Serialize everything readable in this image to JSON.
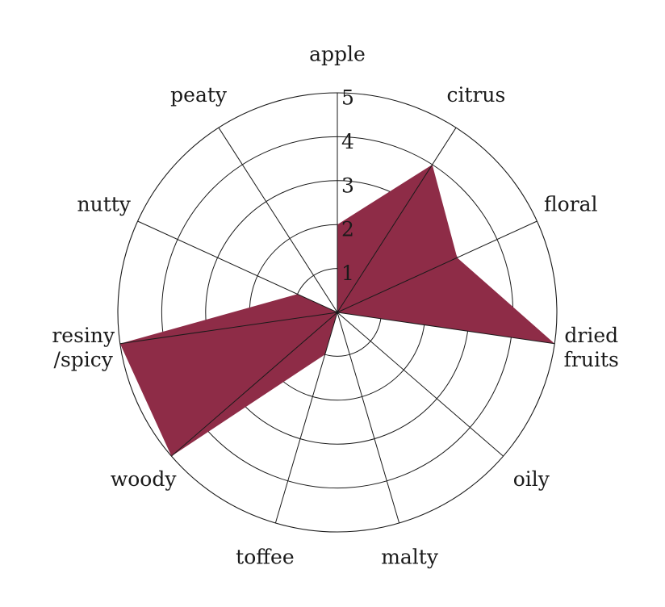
{
  "chart_data": {
    "type": "radar",
    "categories": [
      "apple",
      "citrus",
      "floral",
      "dried fruits",
      "oily",
      "malty",
      "toffee",
      "woody",
      "resiny /spicy",
      "nutty",
      "peaty"
    ],
    "category_lines": [
      [
        "apple"
      ],
      [
        "citrus"
      ],
      [
        "floral"
      ],
      [
        "dried",
        "fruits"
      ],
      [
        "oily"
      ],
      [
        "malty"
      ],
      [
        "toffee"
      ],
      [
        "woody"
      ],
      [
        "resiny",
        "/spicy"
      ],
      [
        "nutty"
      ],
      [
        "peaty"
      ]
    ],
    "values": [
      2,
      4,
      3,
      5,
      0,
      0,
      1,
      5,
      5,
      1,
      0
    ],
    "rmax": 5,
    "rticks": [
      "1",
      "2",
      "3",
      "4",
      "5"
    ],
    "fill_color": "#8e2c47",
    "grid_color": "#1a1a1a",
    "legend": "none"
  }
}
